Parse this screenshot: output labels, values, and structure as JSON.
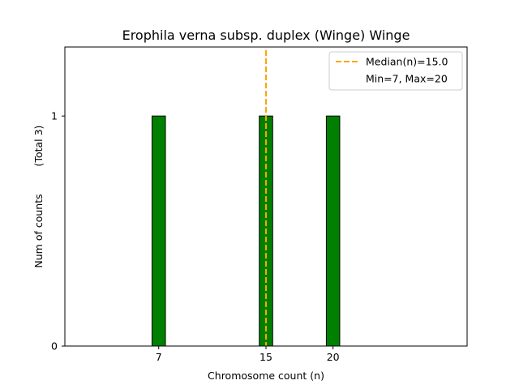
{
  "chart_data": {
    "type": "bar",
    "title": "Erophila verna subsp. duplex (Winge) Winge",
    "xlabel": "Chromosome count (n)",
    "ylabel": "Num of counts",
    "ylabel_total": "(Total 3)",
    "x": [
      7,
      15,
      20
    ],
    "values": [
      1,
      1,
      1
    ],
    "xlim": [
      0,
      30
    ],
    "ylim": [
      0,
      1.3
    ],
    "xticks": [
      7,
      15,
      20
    ],
    "yticks": [
      0,
      1
    ],
    "bar_color": "#008000",
    "bar_edge_color": "#000000",
    "median": 15.0,
    "median_color": "#FFA500",
    "legend": {
      "placement": "top-right",
      "entries": [
        "Median(n)=15.0",
        "Min=7, Max=20"
      ]
    },
    "grid": false
  }
}
